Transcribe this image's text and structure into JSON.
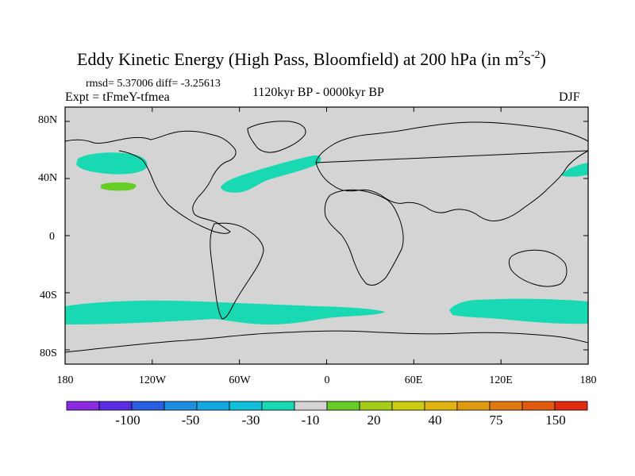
{
  "title": {
    "main": "Eddy Kinetic Energy (High Pass, Bloomfield) at 200 hPa (in m",
    "unit_exp1": "2",
    "unit_mid": "s",
    "unit_exp2": "-2",
    "unit_close": ")"
  },
  "stats": "rmsd= 5.37006 diff= -3.25613",
  "experiment": "Expt = tFmeY-tfmea",
  "period": "1120kyr BP - 0000kyr BP",
  "season": "DJF",
  "map_data": {
    "type": "filled-contour-difference",
    "projection": "cylindrical-equidistant",
    "lon_range": [
      -180,
      180
    ],
    "lat_range": [
      -90,
      90
    ],
    "x_ticks": [
      "180",
      "120W",
      "60W",
      "0",
      "60E",
      "120E",
      "180"
    ],
    "y_ticks": [
      "80N",
      "40N",
      "0",
      "40S",
      "80S"
    ],
    "background_color": "#d4d4d4",
    "regions": [
      {
        "name": "north-pacific-decrease",
        "level": "-10",
        "color": "#19d9b3"
      },
      {
        "name": "north-pacific-increase",
        "level": "20",
        "color": "#66cc26"
      },
      {
        "name": "north-atlantic-decrease",
        "level": "-10",
        "color": "#19d9b3"
      },
      {
        "name": "northeast-pacific-decrease",
        "level": "-10",
        "color": "#19d9b3"
      },
      {
        "name": "southern-ocean-decrease-west",
        "level": "-10",
        "color": "#19d9b3"
      },
      {
        "name": "southern-ocean-decrease-east",
        "level": "-10",
        "color": "#19d9b3"
      }
    ]
  },
  "colorbar": {
    "colors": [
      "#8a2be2",
      "#5a2ee0",
      "#2a5ee0",
      "#1e8fe0",
      "#14a8e0",
      "#10bfd9",
      "#19d9b3",
      "#d4d4d4",
      "#66cc26",
      "#a6cc1a",
      "#cccc10",
      "#e0b410",
      "#e09a10",
      "#e07a10",
      "#e05a10",
      "#e02a10"
    ],
    "labels": [
      "-100",
      "-50",
      "-30",
      "-10",
      "20",
      "40",
      "75",
      "150"
    ]
  }
}
